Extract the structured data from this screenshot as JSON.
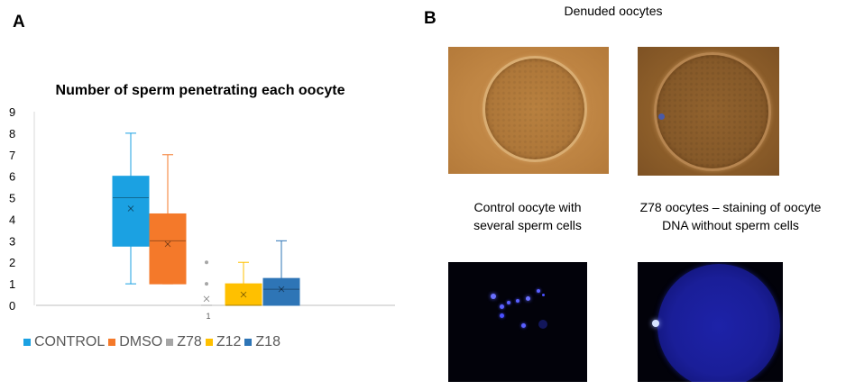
{
  "panels": {
    "a": "A",
    "b": "B"
  },
  "chart_data": {
    "type": "box",
    "title": "Number of sperm penetrating each oocyte",
    "ylim": [
      0,
      9
    ],
    "yticks": [
      0,
      1,
      2,
      3,
      4,
      5,
      6,
      7,
      8,
      9
    ],
    "categories": [
      "1"
    ],
    "grid": false,
    "legend_position": "bottom",
    "series": [
      {
        "name": "CONTROL",
        "color": "#1ba1e2",
        "min": 1,
        "q1": 2.75,
        "median": 5,
        "q3": 6,
        "max": 8,
        "mean": 4.5,
        "outliers": []
      },
      {
        "name": "DMSO",
        "color": "#f4792a",
        "min": 1,
        "q1": 1,
        "median": 3,
        "q3": 4.25,
        "max": 7,
        "mean": 2.85,
        "outliers": []
      },
      {
        "name": "Z78",
        "color": "#a6a6a6",
        "min": 0,
        "q1": 0,
        "median": 0,
        "q3": 0,
        "max": 0,
        "mean": 0.3,
        "outliers": [
          1,
          2
        ]
      },
      {
        "name": "Z12",
        "color": "#ffc000",
        "min": 0,
        "q1": 0,
        "median": 0,
        "q3": 1,
        "max": 2,
        "mean": 0.5,
        "outliers": []
      },
      {
        "name": "Z18",
        "color": "#2e75b6",
        "min": 0,
        "q1": 0,
        "median": 0.75,
        "q3": 1.25,
        "max": 3,
        "mean": 0.75,
        "outliers": []
      }
    ]
  },
  "images": {
    "denuded_title": "Denuded oocytes",
    "control_caption_line1": "Control oocyte with",
    "control_caption_line2": "several sperm cells",
    "z78_caption_line1": "Z78 oocytes – staining of oocyte",
    "z78_caption_line2": "DNA without sperm cells"
  }
}
